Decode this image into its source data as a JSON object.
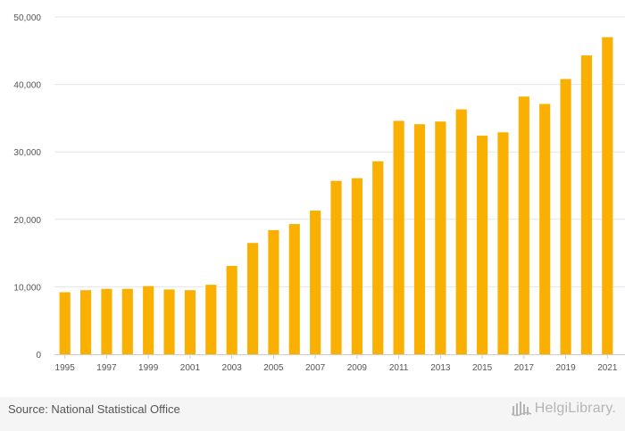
{
  "chart_data": {
    "type": "bar",
    "title": "",
    "xlabel": "",
    "ylabel": "",
    "categories": [
      "1995",
      "1996",
      "1997",
      "1998",
      "1999",
      "2000",
      "2001",
      "2002",
      "2003",
      "2004",
      "2005",
      "2006",
      "2007",
      "2008",
      "2009",
      "2010",
      "2011",
      "2012",
      "2013",
      "2014",
      "2015",
      "2016",
      "2017",
      "2018",
      "2019",
      "2020",
      "2021"
    ],
    "values": [
      9200,
      9500,
      9700,
      9700,
      10100,
      9600,
      9500,
      10300,
      13100,
      16500,
      18400,
      19300,
      21300,
      25700,
      26100,
      28600,
      34600,
      34100,
      34500,
      36300,
      32400,
      32900,
      38200,
      37100,
      40800,
      44300,
      47000
    ],
    "ylim": [
      0,
      50000
    ],
    "yticks": [
      0,
      10000,
      20000,
      30000,
      40000,
      50000
    ],
    "ytick_labels": [
      "0",
      "10,000",
      "20,000",
      "30,000",
      "40,000",
      "50,000"
    ],
    "xtick_labels": [
      "1995",
      "1997",
      "1999",
      "2001",
      "2003",
      "2005",
      "2007",
      "2009",
      "2011",
      "2013",
      "2015",
      "2017",
      "2019",
      "2021"
    ],
    "grid": true,
    "bar_color": "#F9B000"
  },
  "footer": {
    "source": "Source: National Statistical Office",
    "brand": "HelgiLibrary."
  },
  "colors": {
    "grid": "#e6e6e6",
    "axis": "#cccccc",
    "tick_text": "#555555",
    "footer_bg": "#f5f5f5",
    "brand": "#b5b5b5"
  }
}
